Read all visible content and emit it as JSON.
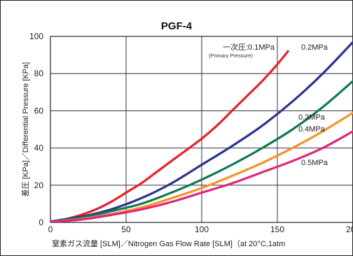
{
  "chart_data": {
    "type": "line",
    "title": "PGF-4",
    "xlabel": "窒素ガス流量 [SLM]／Nitrogen Gas Flow Rate [SLM]（at 20°C,1atm",
    "ylabel": "差圧 [KPa]／Differential Pressure [KPa]",
    "xlim": [
      0,
      200
    ],
    "ylim": [
      0,
      100
    ],
    "x_ticks": [
      "0",
      "50",
      "100",
      "150",
      "200"
    ],
    "y_ticks": [
      "0",
      "20",
      "40",
      "60",
      "80",
      "100"
    ],
    "grid": true,
    "legend": "curve labels",
    "series": [
      {
        "name": "一次圧:0.1MPa",
        "sub_label": "(Primary Pressure)",
        "color": "#e8202a",
        "x": [
          0,
          10,
          20,
          30,
          40,
          50,
          60,
          70,
          80,
          90,
          100,
          110,
          120,
          130,
          140,
          150,
          157
        ],
        "y": [
          0.5,
          1.8,
          4,
          7,
          11,
          16,
          21,
          27,
          33,
          39,
          45,
          52,
          60,
          68,
          76,
          85,
          92
        ]
      },
      {
        "name": "0.2MPa",
        "color": "#2b3590",
        "x": [
          0,
          20,
          40,
          60,
          80,
          100,
          120,
          140,
          160,
          180,
          200
        ],
        "y": [
          0.5,
          3,
          7,
          13,
          21,
          31,
          41,
          52,
          65,
          80,
          97
        ]
      },
      {
        "name": "0.3MPa",
        "color": "#0e7a55",
        "x": [
          0,
          20,
          40,
          60,
          80,
          100,
          120,
          140,
          160,
          180,
          200
        ],
        "y": [
          0.5,
          2.5,
          6,
          10,
          16,
          23,
          31,
          40,
          50,
          62,
          76
        ]
      },
      {
        "name": "0.4MPa",
        "color": "#f5922a",
        "x": [
          0,
          20,
          40,
          60,
          80,
          100,
          120,
          140,
          160,
          180,
          200
        ],
        "y": [
          0.3,
          1.8,
          4.5,
          8,
          13,
          18.5,
          25,
          32,
          40,
          49,
          59
        ]
      },
      {
        "name": "0.5MPa",
        "color": "#e0267d",
        "x": [
          0,
          20,
          40,
          60,
          80,
          100,
          120,
          140,
          160,
          180,
          200
        ],
        "y": [
          0.3,
          1.5,
          4,
          7,
          11,
          16,
          21,
          27,
          33,
          40,
          49
        ]
      }
    ]
  }
}
